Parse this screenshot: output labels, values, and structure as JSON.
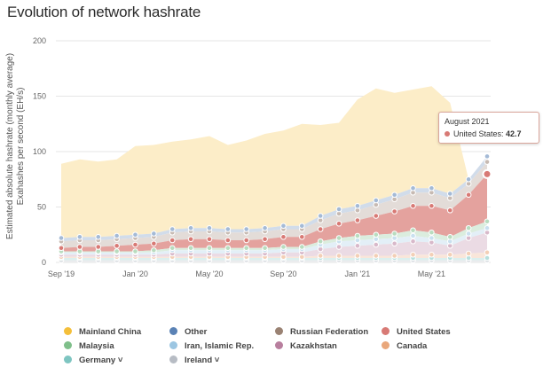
{
  "title": "Evolution of network hashrate",
  "ylabel_lines": [
    "Estimated absolute hashrate (monthly average)",
    "Exahashes per second (EH/s)"
  ],
  "tooltip": {
    "date": "August 2021",
    "series": "United States",
    "value": "42.7"
  },
  "colors": {
    "Mainland China": "#f4bf3a",
    "Other": "#5a82b5",
    "Russian Federation": "#9a8273",
    "United States": "#d87a75",
    "Malaysia": "#7fbf8a",
    "Iran, Islamic Rep.": "#9cc6e2",
    "Kazakhstan": "#b87f9e",
    "Canada": "#e9a77b",
    "Germany": "#7ec5c1",
    "Ireland": "#b7bcc4"
  },
  "legend": [
    {
      "label": "Mainland China",
      "key": "Mainland China"
    },
    {
      "label": "Other",
      "key": "Other"
    },
    {
      "label": "Russian Federation",
      "key": "Russian Federation"
    },
    {
      "label": "United States",
      "key": "United States"
    },
    {
      "label": "Malaysia",
      "key": "Malaysia"
    },
    {
      "label": "Iran, Islamic Rep.",
      "key": "Iran, Islamic Rep."
    },
    {
      "label": "Kazakhstan",
      "key": "Kazakhstan"
    },
    {
      "label": "Canada",
      "key": "Canada"
    },
    {
      "label": "Germany ˅",
      "key": "Germany"
    },
    {
      "label": "Ireland ˅",
      "key": "Ireland"
    }
  ],
  "chart_data": {
    "type": "area",
    "stacked": true,
    "title": "Evolution of network hashrate",
    "ylabel": "Estimated absolute hashrate (monthly average) Exahashes per second (EH/s)",
    "xlabel": "",
    "ylim": [
      0,
      200
    ],
    "yticks": [
      0,
      50,
      100,
      150,
      200
    ],
    "xtick_labels": [
      "Sep '19",
      "Jan '20",
      "May '20",
      "Sep '20",
      "Jan '21",
      "May '21"
    ],
    "x": [
      "2019-09",
      "2019-10",
      "2019-11",
      "2019-12",
      "2020-01",
      "2020-02",
      "2020-03",
      "2020-04",
      "2020-05",
      "2020-06",
      "2020-07",
      "2020-08",
      "2020-09",
      "2020-10",
      "2020-11",
      "2020-12",
      "2021-01",
      "2021-02",
      "2021-03",
      "2021-04",
      "2021-05",
      "2021-06",
      "2021-07",
      "2021-08"
    ],
    "series": [
      {
        "name": "Ireland",
        "values": [
          2,
          2,
          2,
          2,
          2,
          2,
          2,
          2,
          2,
          2,
          2,
          2,
          2,
          2,
          2,
          2,
          2,
          2,
          2,
          2,
          2,
          2,
          2,
          2
        ]
      },
      {
        "name": "Germany",
        "values": [
          2,
          2,
          2,
          2,
          2,
          2,
          2,
          2,
          2,
          2,
          2,
          2,
          2,
          2,
          2,
          2,
          2,
          2,
          2,
          2,
          2,
          2,
          2,
          2
        ]
      },
      {
        "name": "Canada",
        "values": [
          1,
          1,
          1,
          1,
          1,
          1,
          1,
          1,
          1,
          1,
          1,
          1,
          1,
          1,
          2,
          2,
          2,
          2,
          2,
          3,
          3,
          3,
          4,
          5
        ]
      },
      {
        "name": "Kazakhstan",
        "values": [
          2,
          2,
          2,
          2,
          2,
          2,
          3,
          3,
          3,
          3,
          3,
          3,
          4,
          4,
          6,
          8,
          9,
          10,
          11,
          12,
          11,
          8,
          14,
          18
        ]
      },
      {
        "name": "Iran, Islamic Rep.",
        "values": [
          2,
          2,
          2,
          2,
          2,
          2,
          3,
          3,
          3,
          3,
          3,
          3,
          3,
          3,
          4,
          5,
          5,
          5,
          5,
          5,
          4,
          4,
          4,
          4
        ]
      },
      {
        "name": "Malaysia",
        "values": [
          1,
          1,
          1,
          1,
          1,
          2,
          2,
          2,
          2,
          2,
          2,
          2,
          2,
          2,
          3,
          3,
          4,
          4,
          4,
          5,
          5,
          4,
          5,
          6
        ]
      },
      {
        "name": "United States",
        "values": [
          3,
          4,
          4,
          5,
          6,
          6,
          7,
          8,
          8,
          7,
          7,
          8,
          9,
          9,
          11,
          13,
          14,
          17,
          20,
          22,
          24,
          24,
          30,
          42.7
        ]
      },
      {
        "name": "Russian Federation",
        "values": [
          6,
          6,
          6,
          6,
          6,
          6,
          7,
          7,
          7,
          7,
          7,
          7,
          7,
          7,
          8,
          9,
          9,
          10,
          11,
          12,
          12,
          11,
          10,
          11
        ]
      },
      {
        "name": "Other",
        "values": [
          3,
          3,
          3,
          3,
          3,
          3,
          3,
          3,
          3,
          3,
          3,
          3,
          3,
          3,
          4,
          4,
          4,
          4,
          4,
          4,
          4,
          4,
          4,
          5
        ]
      },
      {
        "name": "Mainland China",
        "values": [
          67,
          70,
          68,
          69,
          80,
          80,
          79,
          80,
          83,
          76,
          80,
          85,
          86,
          92,
          82,
          78,
          96,
          101,
          92,
          89,
          92,
          82,
          0,
          0
        ]
      }
    ]
  }
}
